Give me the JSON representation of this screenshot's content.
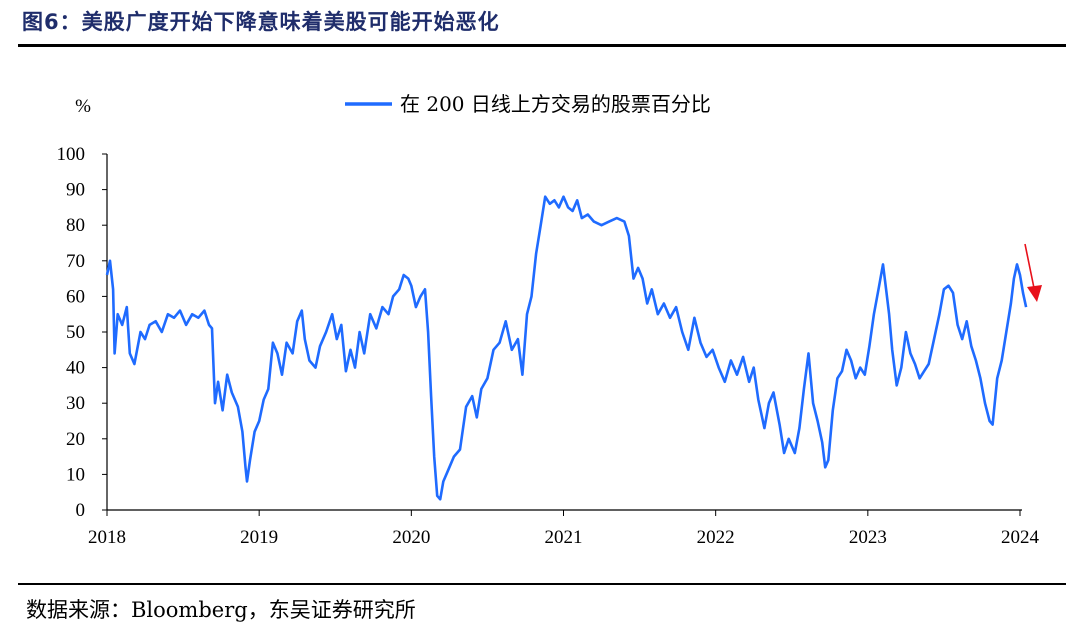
{
  "figure": {
    "title": "图6：美股广度开始下降意味着美股可能开始恶化",
    "source": "数据来源：Bloomberg，东吴证券研究所"
  },
  "colors": {
    "line": "#1f6bff",
    "arrow": "#e8101a",
    "title": "#1f2d6b"
  },
  "chart_data": {
    "type": "line",
    "ylabel": "%",
    "ylim": [
      0,
      100
    ],
    "yticks": [
      0,
      10,
      20,
      30,
      40,
      50,
      60,
      70,
      80,
      90,
      100
    ],
    "xlim": [
      2018,
      2024
    ],
    "xticks": [
      "2018",
      "2019",
      "2020",
      "2021",
      "2022",
      "2023",
      "2024"
    ],
    "legend": "top-center",
    "grid": false,
    "annotation": "red downward arrow at end of series",
    "series": [
      {
        "name": "在 200 日线上方交易的股票百分比",
        "points": [
          [
            2018.0,
            66
          ],
          [
            2018.02,
            70
          ],
          [
            2018.04,
            62
          ],
          [
            2018.05,
            44
          ],
          [
            2018.07,
            55
          ],
          [
            2018.1,
            52
          ],
          [
            2018.13,
            57
          ],
          [
            2018.15,
            44
          ],
          [
            2018.18,
            41
          ],
          [
            2018.22,
            50
          ],
          [
            2018.25,
            48
          ],
          [
            2018.28,
            52
          ],
          [
            2018.32,
            53
          ],
          [
            2018.36,
            50
          ],
          [
            2018.4,
            55
          ],
          [
            2018.44,
            54
          ],
          [
            2018.48,
            56
          ],
          [
            2018.52,
            52
          ],
          [
            2018.56,
            55
          ],
          [
            2018.6,
            54
          ],
          [
            2018.64,
            56
          ],
          [
            2018.67,
            52
          ],
          [
            2018.69,
            51
          ],
          [
            2018.71,
            30
          ],
          [
            2018.73,
            36
          ],
          [
            2018.76,
            28
          ],
          [
            2018.79,
            38
          ],
          [
            2018.82,
            33
          ],
          [
            2018.86,
            29
          ],
          [
            2018.89,
            22
          ],
          [
            2018.91,
            12
          ],
          [
            2018.92,
            8
          ],
          [
            2018.94,
            14
          ],
          [
            2018.97,
            22
          ],
          [
            2019.0,
            25
          ],
          [
            2019.03,
            31
          ],
          [
            2019.06,
            34
          ],
          [
            2019.09,
            47
          ],
          [
            2019.12,
            44
          ],
          [
            2019.15,
            38
          ],
          [
            2019.18,
            47
          ],
          [
            2019.22,
            44
          ],
          [
            2019.25,
            53
          ],
          [
            2019.28,
            56
          ],
          [
            2019.3,
            48
          ],
          [
            2019.33,
            42
          ],
          [
            2019.37,
            40
          ],
          [
            2019.4,
            46
          ],
          [
            2019.44,
            50
          ],
          [
            2019.48,
            55
          ],
          [
            2019.51,
            48
          ],
          [
            2019.54,
            52
          ],
          [
            2019.57,
            39
          ],
          [
            2019.6,
            45
          ],
          [
            2019.63,
            40
          ],
          [
            2019.66,
            50
          ],
          [
            2019.69,
            44
          ],
          [
            2019.73,
            55
          ],
          [
            2019.77,
            51
          ],
          [
            2019.81,
            57
          ],
          [
            2019.85,
            55
          ],
          [
            2019.88,
            60
          ],
          [
            2019.92,
            62
          ],
          [
            2019.95,
            66
          ],
          [
            2019.98,
            65
          ],
          [
            2020.0,
            63
          ],
          [
            2020.03,
            57
          ],
          [
            2020.06,
            60
          ],
          [
            2020.09,
            62
          ],
          [
            2020.11,
            50
          ],
          [
            2020.13,
            32
          ],
          [
            2020.15,
            15
          ],
          [
            2020.17,
            4
          ],
          [
            2020.19,
            3
          ],
          [
            2020.21,
            8
          ],
          [
            2020.24,
            11
          ],
          [
            2020.28,
            15
          ],
          [
            2020.32,
            17
          ],
          [
            2020.36,
            29
          ],
          [
            2020.4,
            32
          ],
          [
            2020.43,
            26
          ],
          [
            2020.46,
            34
          ],
          [
            2020.5,
            37
          ],
          [
            2020.54,
            45
          ],
          [
            2020.58,
            47
          ],
          [
            2020.62,
            53
          ],
          [
            2020.66,
            45
          ],
          [
            2020.7,
            48
          ],
          [
            2020.73,
            38
          ],
          [
            2020.76,
            55
          ],
          [
            2020.79,
            60
          ],
          [
            2020.82,
            72
          ],
          [
            2020.85,
            80
          ],
          [
            2020.88,
            88
          ],
          [
            2020.91,
            86
          ],
          [
            2020.94,
            87
          ],
          [
            2020.97,
            85
          ],
          [
            2021.0,
            88
          ],
          [
            2021.03,
            85
          ],
          [
            2021.06,
            84
          ],
          [
            2021.09,
            87
          ],
          [
            2021.12,
            82
          ],
          [
            2021.16,
            83
          ],
          [
            2021.2,
            81
          ],
          [
            2021.25,
            80
          ],
          [
            2021.3,
            81
          ],
          [
            2021.35,
            82
          ],
          [
            2021.4,
            81
          ],
          [
            2021.43,
            77
          ],
          [
            2021.46,
            65
          ],
          [
            2021.49,
            68
          ],
          [
            2021.52,
            65
          ],
          [
            2021.55,
            58
          ],
          [
            2021.58,
            62
          ],
          [
            2021.62,
            55
          ],
          [
            2021.66,
            58
          ],
          [
            2021.7,
            54
          ],
          [
            2021.74,
            57
          ],
          [
            2021.78,
            50
          ],
          [
            2021.82,
            45
          ],
          [
            2021.86,
            54
          ],
          [
            2021.9,
            47
          ],
          [
            2021.94,
            43
          ],
          [
            2021.98,
            45
          ],
          [
            2022.02,
            40
          ],
          [
            2022.06,
            36
          ],
          [
            2022.1,
            42
          ],
          [
            2022.14,
            38
          ],
          [
            2022.18,
            43
          ],
          [
            2022.22,
            36
          ],
          [
            2022.25,
            40
          ],
          [
            2022.28,
            31
          ],
          [
            2022.32,
            23
          ],
          [
            2022.35,
            30
          ],
          [
            2022.38,
            33
          ],
          [
            2022.42,
            24
          ],
          [
            2022.45,
            16
          ],
          [
            2022.48,
            20
          ],
          [
            2022.52,
            16
          ],
          [
            2022.55,
            23
          ],
          [
            2022.58,
            34
          ],
          [
            2022.61,
            44
          ],
          [
            2022.64,
            30
          ],
          [
            2022.67,
            25
          ],
          [
            2022.7,
            19
          ],
          [
            2022.72,
            12
          ],
          [
            2022.74,
            14
          ],
          [
            2022.77,
            28
          ],
          [
            2022.8,
            37
          ],
          [
            2022.83,
            39
          ],
          [
            2022.86,
            45
          ],
          [
            2022.89,
            42
          ],
          [
            2022.92,
            37
          ],
          [
            2022.95,
            40
          ],
          [
            2022.98,
            38
          ],
          [
            2023.01,
            46
          ],
          [
            2023.04,
            55
          ],
          [
            2023.07,
            62
          ],
          [
            2023.1,
            69
          ],
          [
            2023.12,
            62
          ],
          [
            2023.14,
            55
          ],
          [
            2023.16,
            45
          ],
          [
            2023.19,
            35
          ],
          [
            2023.22,
            40
          ],
          [
            2023.25,
            50
          ],
          [
            2023.28,
            44
          ],
          [
            2023.31,
            41
          ],
          [
            2023.34,
            37
          ],
          [
            2023.37,
            39
          ],
          [
            2023.4,
            41
          ],
          [
            2023.43,
            47
          ],
          [
            2023.47,
            55
          ],
          [
            2023.5,
            62
          ],
          [
            2023.53,
            63
          ],
          [
            2023.56,
            61
          ],
          [
            2023.59,
            52
          ],
          [
            2023.62,
            48
          ],
          [
            2023.65,
            53
          ],
          [
            2023.68,
            46
          ],
          [
            2023.71,
            42
          ],
          [
            2023.74,
            37
          ],
          [
            2023.77,
            30
          ],
          [
            2023.8,
            25
          ],
          [
            2023.82,
            24
          ],
          [
            2023.85,
            37
          ],
          [
            2023.88,
            42
          ],
          [
            2023.91,
            50
          ],
          [
            2023.94,
            58
          ],
          [
            2023.96,
            65
          ],
          [
            2023.98,
            69
          ],
          [
            2024.0,
            66
          ],
          [
            2024.02,
            61
          ],
          [
            2024.04,
            57
          ]
        ]
      }
    ]
  }
}
